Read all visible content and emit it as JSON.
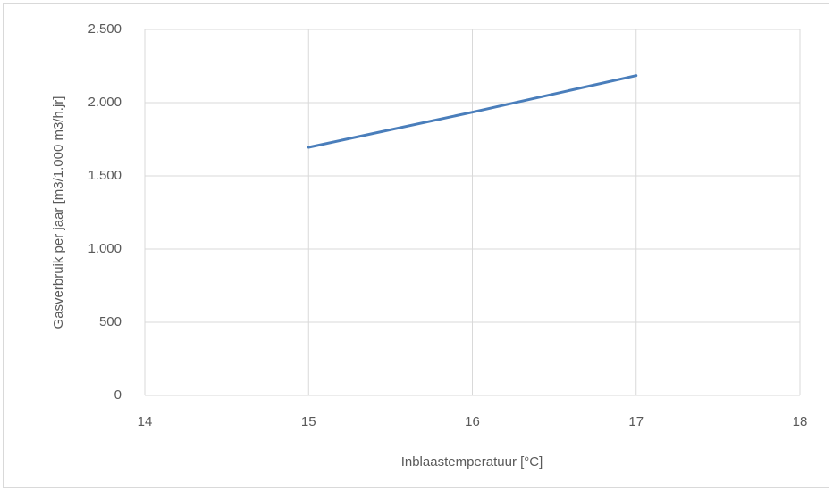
{
  "chart_data": {
    "type": "line",
    "x_label": "Inblaastemperatuur [°C]",
    "y_label": "Gasverbruik per jaar [m3/1.000 m3/h.jr]",
    "x": [
      15,
      16,
      17
    ],
    "values": [
      1695,
      1935,
      2185
    ],
    "color": "#4a7ebb",
    "xlim": [
      14,
      18
    ],
    "xticks": [
      14,
      15,
      16,
      17,
      18
    ],
    "ylim": [
      0,
      2500
    ],
    "yticks": [
      0,
      500,
      {
        "value": 1000,
        "label": "1.000"
      },
      {
        "value": 1500,
        "label": "1.500"
      },
      {
        "value": 2000,
        "label": "2.000"
      },
      {
        "value": 2500,
        "label": "2.500"
      }
    ],
    "grid": true
  }
}
